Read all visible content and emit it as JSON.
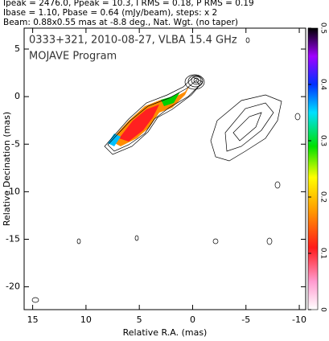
{
  "header": {
    "lines": [
      "Ipeak = 2476.0, Ppeak = 10.3, I RMS = 0.18, P RMS = 0.19",
      "Ibase = 1.10, Pbase = 0.64 (mJy/beam), steps: x 2",
      "Beam: 0.88x0.55 mas at -8.8 deg., Nat. Wgt. (no taper)"
    ]
  },
  "chart_data": {
    "type": "contour",
    "title": "0333+321, 2010-08-27, VLBA 15.4 GHz",
    "subtitle": "MOJAVE Program",
    "x_label": "Relative R.A. (mas)",
    "y_label": "Relative Decination (mas)",
    "xlim": [
      15.8,
      -10.6
    ],
    "xticks": [
      15,
      10,
      5,
      0,
      -5,
      -10
    ],
    "ylim": [
      -22.4,
      7.2
    ],
    "yticks": [
      5,
      0,
      -5,
      -10,
      -15,
      -20
    ],
    "colorbar": {
      "lim": [
        0,
        0.5
      ],
      "ticks": [
        0,
        0.1,
        0.2,
        0.3,
        0.4,
        0.5
      ]
    }
  }
}
